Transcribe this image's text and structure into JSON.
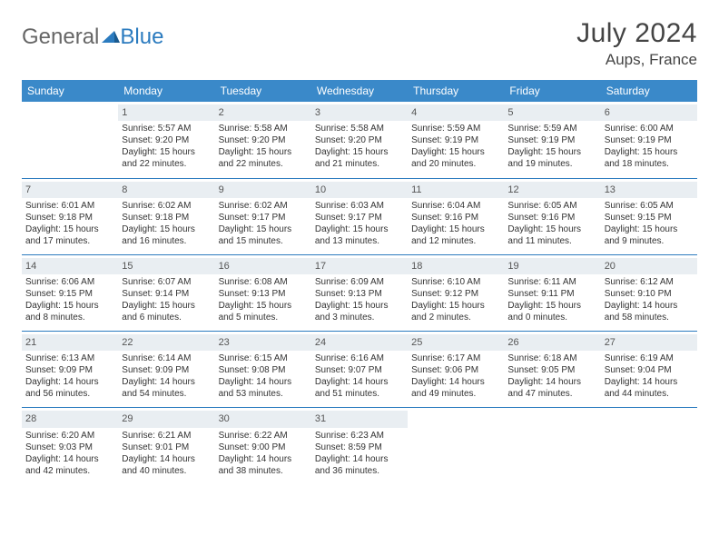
{
  "logo": {
    "part1": "General",
    "part2": "Blue"
  },
  "title": "July 2024",
  "location": "Aups, France",
  "weekdays": [
    "Sunday",
    "Monday",
    "Tuesday",
    "Wednesday",
    "Thursday",
    "Friday",
    "Saturday"
  ],
  "colors": {
    "header_bg": "#3a89c9",
    "border": "#2b7bbf",
    "daynum_bg": "#e9eef2",
    "text": "#333333"
  },
  "weeks": [
    [
      null,
      {
        "n": "1",
        "sr": "Sunrise: 5:57 AM",
        "ss": "Sunset: 9:20 PM",
        "d1": "Daylight: 15 hours",
        "d2": "and 22 minutes."
      },
      {
        "n": "2",
        "sr": "Sunrise: 5:58 AM",
        "ss": "Sunset: 9:20 PM",
        "d1": "Daylight: 15 hours",
        "d2": "and 22 minutes."
      },
      {
        "n": "3",
        "sr": "Sunrise: 5:58 AM",
        "ss": "Sunset: 9:20 PM",
        "d1": "Daylight: 15 hours",
        "d2": "and 21 minutes."
      },
      {
        "n": "4",
        "sr": "Sunrise: 5:59 AM",
        "ss": "Sunset: 9:19 PM",
        "d1": "Daylight: 15 hours",
        "d2": "and 20 minutes."
      },
      {
        "n": "5",
        "sr": "Sunrise: 5:59 AM",
        "ss": "Sunset: 9:19 PM",
        "d1": "Daylight: 15 hours",
        "d2": "and 19 minutes."
      },
      {
        "n": "6",
        "sr": "Sunrise: 6:00 AM",
        "ss": "Sunset: 9:19 PM",
        "d1": "Daylight: 15 hours",
        "d2": "and 18 minutes."
      }
    ],
    [
      {
        "n": "7",
        "sr": "Sunrise: 6:01 AM",
        "ss": "Sunset: 9:18 PM",
        "d1": "Daylight: 15 hours",
        "d2": "and 17 minutes."
      },
      {
        "n": "8",
        "sr": "Sunrise: 6:02 AM",
        "ss": "Sunset: 9:18 PM",
        "d1": "Daylight: 15 hours",
        "d2": "and 16 minutes."
      },
      {
        "n": "9",
        "sr": "Sunrise: 6:02 AM",
        "ss": "Sunset: 9:17 PM",
        "d1": "Daylight: 15 hours",
        "d2": "and 15 minutes."
      },
      {
        "n": "10",
        "sr": "Sunrise: 6:03 AM",
        "ss": "Sunset: 9:17 PM",
        "d1": "Daylight: 15 hours",
        "d2": "and 13 minutes."
      },
      {
        "n": "11",
        "sr": "Sunrise: 6:04 AM",
        "ss": "Sunset: 9:16 PM",
        "d1": "Daylight: 15 hours",
        "d2": "and 12 minutes."
      },
      {
        "n": "12",
        "sr": "Sunrise: 6:05 AM",
        "ss": "Sunset: 9:16 PM",
        "d1": "Daylight: 15 hours",
        "d2": "and 11 minutes."
      },
      {
        "n": "13",
        "sr": "Sunrise: 6:05 AM",
        "ss": "Sunset: 9:15 PM",
        "d1": "Daylight: 15 hours",
        "d2": "and 9 minutes."
      }
    ],
    [
      {
        "n": "14",
        "sr": "Sunrise: 6:06 AM",
        "ss": "Sunset: 9:15 PM",
        "d1": "Daylight: 15 hours",
        "d2": "and 8 minutes."
      },
      {
        "n": "15",
        "sr": "Sunrise: 6:07 AM",
        "ss": "Sunset: 9:14 PM",
        "d1": "Daylight: 15 hours",
        "d2": "and 6 minutes."
      },
      {
        "n": "16",
        "sr": "Sunrise: 6:08 AM",
        "ss": "Sunset: 9:13 PM",
        "d1": "Daylight: 15 hours",
        "d2": "and 5 minutes."
      },
      {
        "n": "17",
        "sr": "Sunrise: 6:09 AM",
        "ss": "Sunset: 9:13 PM",
        "d1": "Daylight: 15 hours",
        "d2": "and 3 minutes."
      },
      {
        "n": "18",
        "sr": "Sunrise: 6:10 AM",
        "ss": "Sunset: 9:12 PM",
        "d1": "Daylight: 15 hours",
        "d2": "and 2 minutes."
      },
      {
        "n": "19",
        "sr": "Sunrise: 6:11 AM",
        "ss": "Sunset: 9:11 PM",
        "d1": "Daylight: 15 hours",
        "d2": "and 0 minutes."
      },
      {
        "n": "20",
        "sr": "Sunrise: 6:12 AM",
        "ss": "Sunset: 9:10 PM",
        "d1": "Daylight: 14 hours",
        "d2": "and 58 minutes."
      }
    ],
    [
      {
        "n": "21",
        "sr": "Sunrise: 6:13 AM",
        "ss": "Sunset: 9:09 PM",
        "d1": "Daylight: 14 hours",
        "d2": "and 56 minutes."
      },
      {
        "n": "22",
        "sr": "Sunrise: 6:14 AM",
        "ss": "Sunset: 9:09 PM",
        "d1": "Daylight: 14 hours",
        "d2": "and 54 minutes."
      },
      {
        "n": "23",
        "sr": "Sunrise: 6:15 AM",
        "ss": "Sunset: 9:08 PM",
        "d1": "Daylight: 14 hours",
        "d2": "and 53 minutes."
      },
      {
        "n": "24",
        "sr": "Sunrise: 6:16 AM",
        "ss": "Sunset: 9:07 PM",
        "d1": "Daylight: 14 hours",
        "d2": "and 51 minutes."
      },
      {
        "n": "25",
        "sr": "Sunrise: 6:17 AM",
        "ss": "Sunset: 9:06 PM",
        "d1": "Daylight: 14 hours",
        "d2": "and 49 minutes."
      },
      {
        "n": "26",
        "sr": "Sunrise: 6:18 AM",
        "ss": "Sunset: 9:05 PM",
        "d1": "Daylight: 14 hours",
        "d2": "and 47 minutes."
      },
      {
        "n": "27",
        "sr": "Sunrise: 6:19 AM",
        "ss": "Sunset: 9:04 PM",
        "d1": "Daylight: 14 hours",
        "d2": "and 44 minutes."
      }
    ],
    [
      {
        "n": "28",
        "sr": "Sunrise: 6:20 AM",
        "ss": "Sunset: 9:03 PM",
        "d1": "Daylight: 14 hours",
        "d2": "and 42 minutes."
      },
      {
        "n": "29",
        "sr": "Sunrise: 6:21 AM",
        "ss": "Sunset: 9:01 PM",
        "d1": "Daylight: 14 hours",
        "d2": "and 40 minutes."
      },
      {
        "n": "30",
        "sr": "Sunrise: 6:22 AM",
        "ss": "Sunset: 9:00 PM",
        "d1": "Daylight: 14 hours",
        "d2": "and 38 minutes."
      },
      {
        "n": "31",
        "sr": "Sunrise: 6:23 AM",
        "ss": "Sunset: 8:59 PM",
        "d1": "Daylight: 14 hours",
        "d2": "and 36 minutes."
      },
      null,
      null,
      null
    ]
  ]
}
